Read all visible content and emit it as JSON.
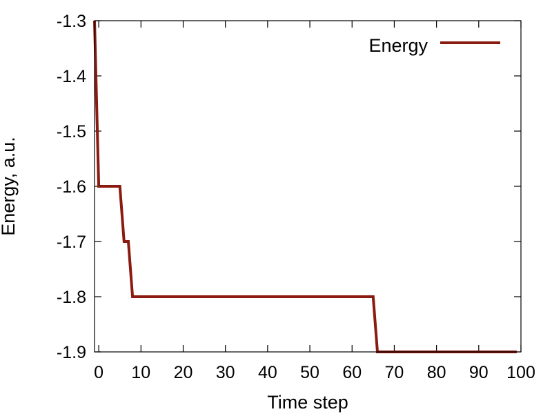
{
  "chart_data": {
    "type": "line",
    "title": "",
    "xlabel": "Time step",
    "ylabel": "Energy, a.u.",
    "xlim": [
      -1,
      100
    ],
    "ylim": [
      -1.9,
      -1.3
    ],
    "xticks": [
      0,
      10,
      20,
      30,
      40,
      50,
      60,
      70,
      80,
      90,
      100
    ],
    "xtick_labels": [
      "0",
      "10",
      "20",
      "30",
      "40",
      "50",
      "60",
      "70",
      "80",
      "90",
      "100"
    ],
    "yticks": [
      -1.3,
      -1.4,
      -1.5,
      -1.6,
      -1.7,
      -1.8,
      -1.9
    ],
    "ytick_labels": [
      "-1.3",
      "-1.4",
      "-1.5",
      "-1.6",
      "-1.7",
      "-1.8",
      "-1.9"
    ],
    "grid": false,
    "legend_position": "top-right",
    "series": [
      {
        "name": "Energy",
        "color": "#8b1a10",
        "x": [
          -1,
          0,
          5,
          6,
          7,
          8,
          9,
          65,
          66,
          99
        ],
        "y": [
          -1.3,
          -1.6,
          -1.6,
          -1.7,
          -1.7,
          -1.8,
          -1.8,
          -1.8,
          -1.9,
          -1.9
        ]
      }
    ]
  }
}
